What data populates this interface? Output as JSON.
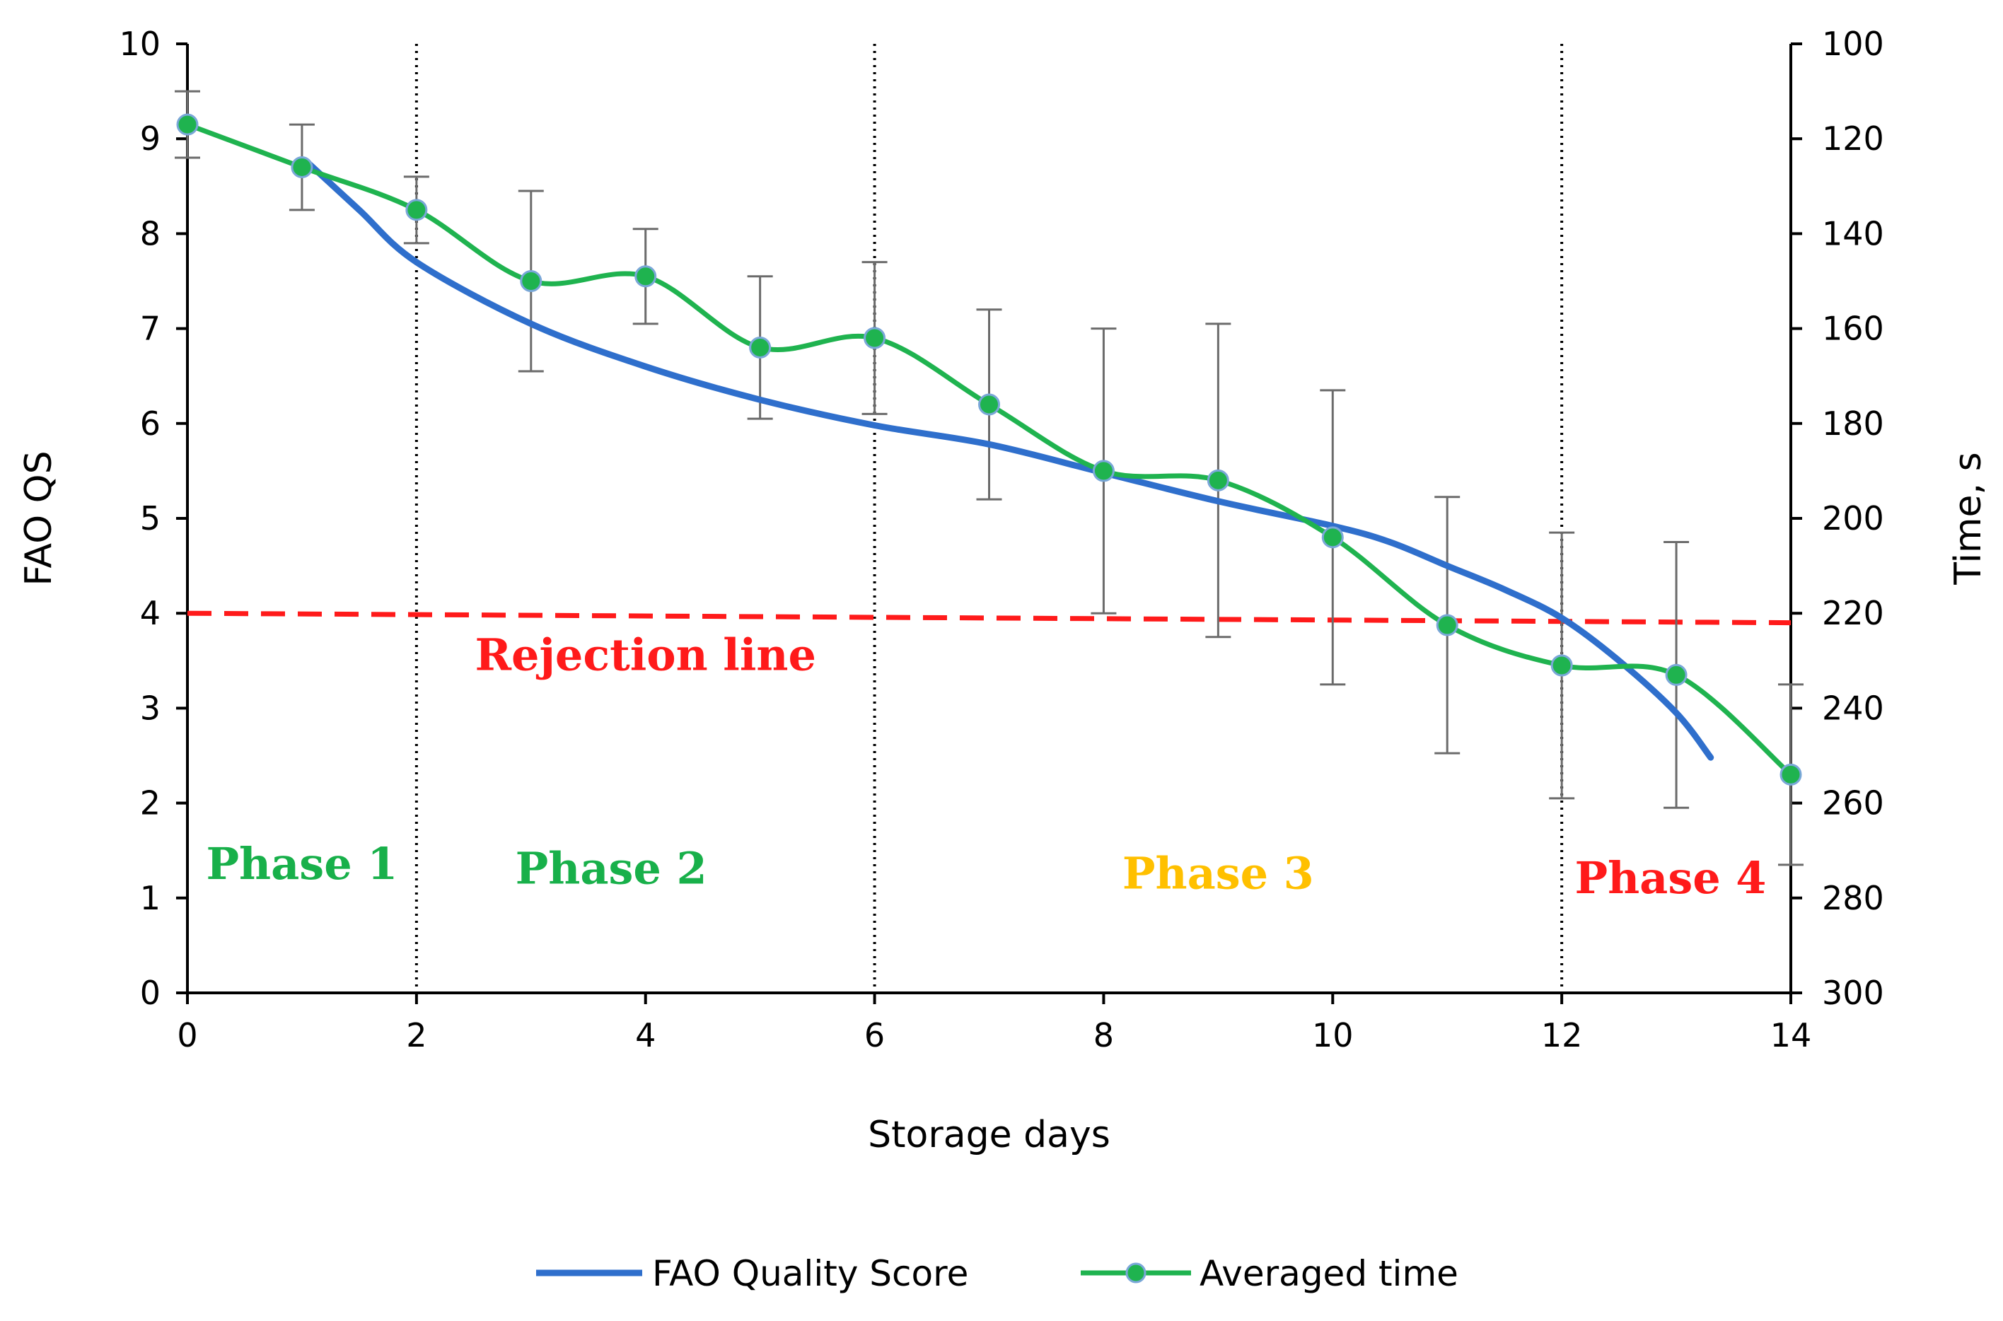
{
  "chart_data": {
    "type": "line",
    "title": "",
    "xlabel": "Storage days",
    "ylabel": "FAO QS",
    "y2label": "Time, s",
    "xlim": [
      0,
      14
    ],
    "ylim": [
      0,
      10
    ],
    "y2lim": [
      300,
      100
    ],
    "y2_inverted": true,
    "x_ticks": [
      0,
      2,
      4,
      6,
      8,
      10,
      12,
      14
    ],
    "y_ticks": [
      0,
      1,
      2,
      3,
      4,
      5,
      6,
      7,
      8,
      9,
      10
    ],
    "y2_ticks": [
      100,
      120,
      140,
      160,
      180,
      200,
      220,
      240,
      260,
      280,
      300
    ],
    "grid": false,
    "legend_position": "bottom",
    "colors": {
      "fao": "#2f6fcc",
      "averaged": "#1fb34f",
      "marker_edge": "#7aa7d8",
      "error_bar": "#6b6b6b",
      "rejection": "#ff1a1a",
      "phase_green": "#18b04a",
      "phase_yellow": "#ffc000",
      "phase_red": "#ff1a1a"
    },
    "series": [
      {
        "name": "FAO Quality Score",
        "axis": "left",
        "style": "line",
        "x": [
          1.05,
          1.5,
          2,
          3,
          4,
          5,
          6,
          7,
          8,
          9,
          10,
          10.5,
          11,
          11.5,
          12,
          12.5,
          13,
          13.3
        ],
        "y": [
          8.75,
          8.25,
          7.7,
          7.05,
          6.6,
          6.25,
          5.98,
          5.78,
          5.48,
          5.18,
          4.92,
          4.75,
          4.5,
          4.25,
          3.95,
          3.5,
          2.95,
          2.48
        ]
      },
      {
        "name": "Averaged time",
        "axis": "right",
        "style": "line-marker",
        "x": [
          0,
          1,
          2,
          3,
          4,
          5,
          6,
          7,
          8,
          9,
          10,
          11,
          12,
          13,
          14
        ],
        "y": [
          117,
          126,
          135,
          150,
          149,
          164,
          162,
          176,
          190,
          192,
          204,
          222.5,
          231,
          233,
          254
        ],
        "error": [
          7,
          9,
          7,
          19,
          10,
          15,
          16,
          20,
          30,
          33,
          31,
          27,
          28,
          28,
          19
        ]
      }
    ],
    "reference_lines": [
      {
        "label": "Rejection line",
        "axis": "left",
        "x": [
          0,
          14
        ],
        "y": [
          4.0,
          3.9
        ]
      }
    ],
    "phase_dividers": [
      2,
      6,
      12
    ],
    "annotations": [
      {
        "text": "Phase 1",
        "x": 1.0,
        "y": 1.2,
        "color_key": "phase_green"
      },
      {
        "text": "Phase 2",
        "x": 3.7,
        "y": 1.15,
        "color_key": "phase_green"
      },
      {
        "text": "Phase 3",
        "x": 9.0,
        "y": 1.1,
        "color_key": "phase_yellow"
      },
      {
        "text": "Phase 4",
        "x": 12.95,
        "y": 1.05,
        "color_key": "phase_red"
      },
      {
        "text": "Rejection line",
        "x": 4.0,
        "y": 3.4,
        "color_key": "rejection"
      }
    ]
  }
}
